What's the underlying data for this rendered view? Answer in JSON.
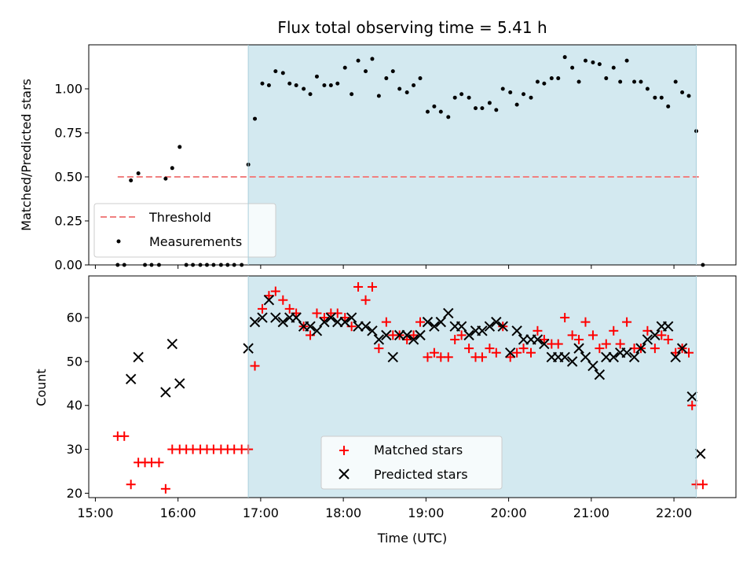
{
  "chart_data": [
    {
      "type": "scatter",
      "title": "Flux total observing time = 5.41 h",
      "ylabel": "Matched/Predicted stars",
      "xlabel": "",
      "xlim": [
        14.92,
        22.75
      ],
      "ylim": [
        0,
        1.25
      ],
      "yticks": [
        0.0,
        0.25,
        0.5,
        0.75,
        1.0
      ],
      "ytick_labels": [
        "0.00",
        "0.25",
        "0.50",
        "0.75",
        "1.00"
      ],
      "shaded_region": {
        "x": [
          16.85,
          22.27
        ],
        "color": "#d3e9f0"
      },
      "threshold": {
        "name": "Threshold",
        "y": 0.5,
        "x": [
          15.27,
          22.33
        ],
        "color": "#f08080"
      },
      "legend": {
        "position": "lower left",
        "entries": [
          "Threshold",
          "Measurements"
        ]
      },
      "series": [
        {
          "name": "Measurements",
          "color": "#000000",
          "points": [
            [
              15.27,
              0.0
            ],
            [
              15.35,
              0.0
            ],
            [
              15.43,
              0.48
            ],
            [
              15.52,
              0.52
            ],
            [
              15.6,
              0.0
            ],
            [
              15.68,
              0.0
            ],
            [
              15.77,
              0.0
            ],
            [
              15.85,
              0.49
            ],
            [
              15.93,
              0.55
            ],
            [
              16.02,
              0.67
            ],
            [
              16.1,
              0.0
            ],
            [
              16.18,
              0.0
            ],
            [
              16.27,
              0.0
            ],
            [
              16.35,
              0.0
            ],
            [
              16.43,
              0.0
            ],
            [
              16.52,
              0.0
            ],
            [
              16.6,
              0.0
            ],
            [
              16.68,
              0.0
            ],
            [
              16.77,
              0.0
            ],
            [
              16.85,
              0.57
            ],
            [
              16.93,
              0.83
            ],
            [
              17.02,
              1.03
            ],
            [
              17.1,
              1.02
            ],
            [
              17.18,
              1.1
            ],
            [
              17.27,
              1.09
            ],
            [
              17.35,
              1.03
            ],
            [
              17.43,
              1.02
            ],
            [
              17.52,
              1.0
            ],
            [
              17.6,
              0.97
            ],
            [
              17.68,
              1.07
            ],
            [
              17.77,
              1.02
            ],
            [
              17.85,
              1.02
            ],
            [
              17.93,
              1.03
            ],
            [
              18.02,
              1.12
            ],
            [
              18.1,
              0.97
            ],
            [
              18.18,
              1.16
            ],
            [
              18.27,
              1.1
            ],
            [
              18.35,
              1.17
            ],
            [
              18.43,
              0.96
            ],
            [
              18.52,
              1.06
            ],
            [
              18.6,
              1.1
            ],
            [
              18.68,
              1.0
            ],
            [
              18.77,
              0.98
            ],
            [
              18.85,
              1.02
            ],
            [
              18.93,
              1.06
            ],
            [
              19.02,
              0.87
            ],
            [
              19.1,
              0.9
            ],
            [
              19.18,
              0.87
            ],
            [
              19.27,
              0.84
            ],
            [
              19.35,
              0.95
            ],
            [
              19.43,
              0.97
            ],
            [
              19.52,
              0.95
            ],
            [
              19.6,
              0.89
            ],
            [
              19.68,
              0.89
            ],
            [
              19.77,
              0.92
            ],
            [
              19.85,
              0.88
            ],
            [
              19.93,
              1.0
            ],
            [
              20.02,
              0.98
            ],
            [
              20.1,
              0.91
            ],
            [
              20.18,
              0.97
            ],
            [
              20.27,
              0.95
            ],
            [
              20.35,
              1.04
            ],
            [
              20.43,
              1.03
            ],
            [
              20.52,
              1.06
            ],
            [
              20.6,
              1.06
            ],
            [
              20.68,
              1.18
            ],
            [
              20.77,
              1.12
            ],
            [
              20.85,
              1.04
            ],
            [
              20.93,
              1.16
            ],
            [
              21.02,
              1.15
            ],
            [
              21.1,
              1.14
            ],
            [
              21.18,
              1.06
            ],
            [
              21.27,
              1.12
            ],
            [
              21.35,
              1.04
            ],
            [
              21.43,
              1.16
            ],
            [
              21.52,
              1.04
            ],
            [
              21.6,
              1.04
            ],
            [
              21.68,
              1.0
            ],
            [
              21.77,
              0.95
            ],
            [
              21.85,
              0.95
            ],
            [
              21.93,
              0.9
            ],
            [
              22.02,
              1.04
            ],
            [
              22.1,
              0.98
            ],
            [
              22.18,
              0.96
            ],
            [
              22.27,
              0.76
            ],
            [
              22.35,
              0.0
            ]
          ]
        }
      ]
    },
    {
      "type": "scatter",
      "title": "",
      "ylabel": "Count",
      "xlabel": "Time (UTC)",
      "xlim": [
        14.92,
        22.75
      ],
      "ylim": [
        19.0,
        69.5
      ],
      "yticks": [
        20,
        30,
        40,
        50,
        60
      ],
      "ytick_labels": [
        "20",
        "30",
        "40",
        "50",
        "60"
      ],
      "xticks": [
        15,
        16,
        17,
        18,
        19,
        20,
        21,
        22
      ],
      "xtick_labels": [
        "15:00",
        "16:00",
        "17:00",
        "18:00",
        "19:00",
        "20:00",
        "21:00",
        "22:00"
      ],
      "shaded_region": {
        "x": [
          16.85,
          22.27
        ],
        "color": "#d3e9f0"
      },
      "legend": {
        "position": "lower center",
        "entries": [
          "Matched stars",
          "Predicted stars"
        ]
      },
      "series": [
        {
          "name": "Matched stars",
          "marker": "plus",
          "color": "#ff0000",
          "points": [
            [
              15.27,
              33
            ],
            [
              15.35,
              33
            ],
            [
              15.43,
              22
            ],
            [
              15.52,
              27
            ],
            [
              15.6,
              27
            ],
            [
              15.68,
              27
            ],
            [
              15.77,
              27
            ],
            [
              15.85,
              21
            ],
            [
              15.93,
              30
            ],
            [
              16.02,
              30
            ],
            [
              16.1,
              30
            ],
            [
              16.18,
              30
            ],
            [
              16.27,
              30
            ],
            [
              16.35,
              30
            ],
            [
              16.43,
              30
            ],
            [
              16.52,
              30
            ],
            [
              16.6,
              30
            ],
            [
              16.68,
              30
            ],
            [
              16.77,
              30
            ],
            [
              16.85,
              30
            ],
            [
              16.93,
              49
            ],
            [
              17.02,
              62
            ],
            [
              17.1,
              65
            ],
            [
              17.18,
              66
            ],
            [
              17.27,
              64
            ],
            [
              17.35,
              62
            ],
            [
              17.43,
              61
            ],
            [
              17.52,
              58
            ],
            [
              17.6,
              56
            ],
            [
              17.68,
              61
            ],
            [
              17.77,
              60
            ],
            [
              17.85,
              61
            ],
            [
              17.93,
              61
            ],
            [
              18.02,
              60
            ],
            [
              18.1,
              58
            ],
            [
              18.18,
              67
            ],
            [
              18.27,
              64
            ],
            [
              18.35,
              67
            ],
            [
              18.43,
              53
            ],
            [
              18.52,
              59
            ],
            [
              18.6,
              56
            ],
            [
              18.68,
              56
            ],
            [
              18.77,
              55
            ],
            [
              18.85,
              56
            ],
            [
              18.93,
              59
            ],
            [
              19.02,
              51
            ],
            [
              19.1,
              52
            ],
            [
              19.18,
              51
            ],
            [
              19.27,
              51
            ],
            [
              19.35,
              55
            ],
            [
              19.43,
              56
            ],
            [
              19.52,
              53
            ],
            [
              19.6,
              51
            ],
            [
              19.68,
              51
            ],
            [
              19.77,
              53
            ],
            [
              19.85,
              52
            ],
            [
              19.93,
              58
            ],
            [
              20.02,
              51
            ],
            [
              20.1,
              52
            ],
            [
              20.18,
              53
            ],
            [
              20.27,
              52
            ],
            [
              20.35,
              57
            ],
            [
              20.43,
              55
            ],
            [
              20.52,
              54
            ],
            [
              20.6,
              54
            ],
            [
              20.68,
              60
            ],
            [
              20.77,
              56
            ],
            [
              20.85,
              55
            ],
            [
              20.93,
              59
            ],
            [
              21.02,
              56
            ],
            [
              21.1,
              53
            ],
            [
              21.18,
              54
            ],
            [
              21.27,
              57
            ],
            [
              21.35,
              54
            ],
            [
              21.43,
              59
            ],
            [
              21.52,
              53
            ],
            [
              21.6,
              53
            ],
            [
              21.68,
              57
            ],
            [
              21.77,
              53
            ],
            [
              21.85,
              56
            ],
            [
              21.93,
              55
            ],
            [
              22.02,
              52
            ],
            [
              22.1,
              53
            ],
            [
              22.18,
              52
            ],
            [
              22.22,
              40
            ],
            [
              22.27,
              22
            ],
            [
              22.35,
              22
            ]
          ]
        },
        {
          "name": "Predicted stars",
          "marker": "x",
          "color": "#000000",
          "points": [
            [
              15.43,
              46
            ],
            [
              15.52,
              51
            ],
            [
              15.85,
              43
            ],
            [
              15.93,
              54
            ],
            [
              16.02,
              45
            ],
            [
              16.85,
              53
            ],
            [
              16.93,
              59
            ],
            [
              17.02,
              60
            ],
            [
              17.1,
              64
            ],
            [
              17.18,
              60
            ],
            [
              17.27,
              59
            ],
            [
              17.35,
              60
            ],
            [
              17.43,
              60
            ],
            [
              17.52,
              58
            ],
            [
              17.6,
              58
            ],
            [
              17.68,
              57
            ],
            [
              17.77,
              59
            ],
            [
              17.85,
              60
            ],
            [
              17.93,
              59
            ],
            [
              18.02,
              59
            ],
            [
              18.1,
              60
            ],
            [
              18.18,
              58
            ],
            [
              18.27,
              58
            ],
            [
              18.35,
              57
            ],
            [
              18.43,
              55
            ],
            [
              18.52,
              56
            ],
            [
              18.6,
              51
            ],
            [
              18.68,
              56
            ],
            [
              18.77,
              56
            ],
            [
              18.85,
              55
            ],
            [
              18.93,
              56
            ],
            [
              19.02,
              59
            ],
            [
              19.1,
              58
            ],
            [
              19.18,
              59
            ],
            [
              19.27,
              61
            ],
            [
              19.35,
              58
            ],
            [
              19.43,
              58
            ],
            [
              19.52,
              56
            ],
            [
              19.6,
              57
            ],
            [
              19.68,
              57
            ],
            [
              19.77,
              58
            ],
            [
              19.85,
              59
            ],
            [
              19.93,
              58
            ],
            [
              20.02,
              52
            ],
            [
              20.1,
              57
            ],
            [
              20.18,
              55
            ],
            [
              20.27,
              55
            ],
            [
              20.35,
              55
            ],
            [
              20.43,
              54
            ],
            [
              20.52,
              51
            ],
            [
              20.6,
              51
            ],
            [
              20.68,
              51
            ],
            [
              20.77,
              50
            ],
            [
              20.85,
              53
            ],
            [
              20.93,
              51
            ],
            [
              21.02,
              49
            ],
            [
              21.1,
              47
            ],
            [
              21.18,
              51
            ],
            [
              21.27,
              51
            ],
            [
              21.35,
              52
            ],
            [
              21.43,
              52
            ],
            [
              21.52,
              51
            ],
            [
              21.6,
              53
            ],
            [
              21.68,
              55
            ],
            [
              21.77,
              56
            ],
            [
              21.85,
              58
            ],
            [
              21.93,
              58
            ],
            [
              22.02,
              51
            ],
            [
              22.1,
              53
            ],
            [
              22.22,
              42
            ],
            [
              22.32,
              29
            ]
          ]
        }
      ]
    }
  ]
}
